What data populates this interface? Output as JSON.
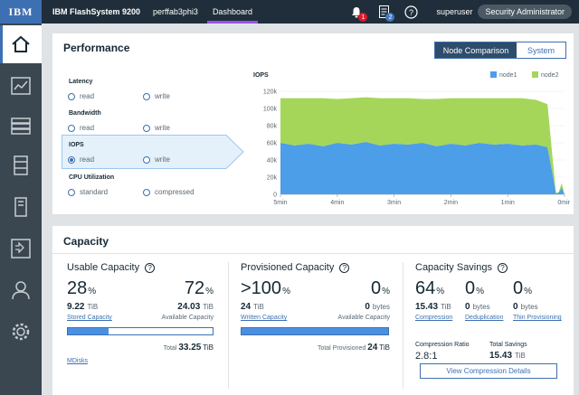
{
  "header": {
    "logo": "IBM",
    "product": "IBM FlashSystem 9200",
    "system": "perffab3phi3",
    "page": "Dashboard",
    "notifications_count": "1",
    "tasks_count": "2",
    "user": "superuser",
    "role": "Security Administrator"
  },
  "sidenav": {
    "items": [
      "home-icon",
      "monitoring-icon",
      "pools-icon",
      "volumes-icon",
      "hosts-icon",
      "copy-services-icon",
      "access-icon",
      "settings-icon"
    ]
  },
  "performance": {
    "title": "Performance",
    "toggle": {
      "left": "Node Comparison",
      "right": "System"
    },
    "metrics": {
      "latency": {
        "label": "Latency",
        "opt1": "read",
        "opt2": "write"
      },
      "bandwidth": {
        "label": "Bandwidth",
        "opt1": "read",
        "opt2": "write"
      },
      "iops": {
        "label": "IOPS",
        "opt1": "read",
        "opt2": "write",
        "selected": "read"
      },
      "cpu": {
        "label": "CPU Utilization",
        "opt1": "standard",
        "opt2": "compressed"
      }
    }
  },
  "chart_data": {
    "type": "area",
    "title": "IOPS",
    "stacked": true,
    "legend_position": "top-right",
    "x_ticks": [
      "5min",
      "4min",
      "3min",
      "2min",
      "1min",
      "0min"
    ],
    "y_ticks": [
      "0",
      "20k",
      "40k",
      "60k",
      "80k",
      "100k",
      "120k"
    ],
    "ylim": [
      0,
      120000
    ],
    "x": [
      5.0,
      4.75,
      4.5,
      4.25,
      4.0,
      3.75,
      3.5,
      3.25,
      3.0,
      2.75,
      2.5,
      2.25,
      2.0,
      1.75,
      1.5,
      1.25,
      1.0,
      0.75,
      0.5,
      0.3,
      0.2,
      0.15,
      0.1,
      0.05,
      0.0
    ],
    "series": [
      {
        "name": "node1",
        "color": "#4c9ee8",
        "values": [
          60000,
          57000,
          59000,
          56000,
          60000,
          58000,
          61000,
          57000,
          59000,
          58000,
          60000,
          56000,
          59000,
          57000,
          60000,
          58000,
          59000,
          57000,
          58000,
          55000,
          20000,
          1000,
          2000,
          8000,
          0
        ]
      },
      {
        "name": "node2",
        "color": "#a5d65a",
        "values": [
          52000,
          55000,
          53000,
          56000,
          51000,
          54000,
          52000,
          55000,
          53000,
          54000,
          51000,
          55000,
          53000,
          55000,
          52000,
          54000,
          53000,
          55000,
          52000,
          50000,
          15000,
          500,
          1000,
          5000,
          0
        ]
      }
    ]
  },
  "capacity": {
    "title": "Capacity",
    "usable": {
      "title": "Usable Capacity",
      "stored_pct": "28",
      "available_pct": "72",
      "stored_val": "9.22",
      "stored_unit": "TiB",
      "available_val": "24.03",
      "available_unit": "TiB",
      "stored_label": "Stored Capacity",
      "available_label": "Available Capacity",
      "fill_fraction": 0.28,
      "total_label": "Total",
      "total_val": "33.25",
      "total_unit": "TiB",
      "mdisks": "MDisks"
    },
    "provisioned": {
      "title": "Provisioned Capacity",
      "written_pct": ">100",
      "available_pct": "0",
      "written_val": "24",
      "written_unit": "TiB",
      "available_val": "0",
      "available_unit": "bytes",
      "written_label": "Written Capacity",
      "available_label": "Available Capacity",
      "fill_fraction": 1.0,
      "total_label": "Total Provisioned",
      "total_val": "24",
      "total_unit": "TiB"
    },
    "savings": {
      "title": "Capacity Savings",
      "compression_pct": "64",
      "dedup_pct": "0",
      "thin_pct": "0",
      "compression_val": "15.43",
      "compression_unit": "TiB",
      "dedup_val": "0",
      "dedup_unit": "bytes",
      "thin_val": "0",
      "thin_unit": "bytes",
      "compression_label": "Compression",
      "dedup_label": "Deduplication",
      "thin_label": "Thin Provisioning",
      "ratio_label": "Compression Ratio",
      "ratio_val": "2.8:1",
      "total_label": "Total Savings",
      "total_val": "15.43",
      "total_unit": "TiB",
      "details_button": "View Compression Details"
    },
    "percent_sign": "%"
  }
}
